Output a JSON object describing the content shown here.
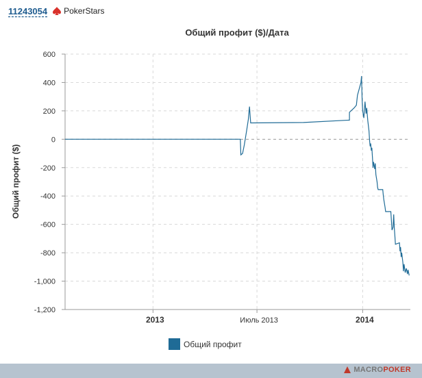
{
  "header": {
    "player_id": "11243054",
    "room_name": "PokerStars",
    "room_icon": "pokerstars-spade-icon"
  },
  "colors": {
    "series": "#1f6b96",
    "grid": "#d8d8d8",
    "zero_line": "#999999",
    "room_icon": "#d9312b",
    "footer": "#b6c3cf"
  },
  "chart_data": {
    "type": "line",
    "title": "Общий профит ($)/Дата",
    "ylabel": "Общий профит ($)",
    "xlabel": "",
    "ylim": [
      -1200,
      600
    ],
    "yticks": [
      {
        "value": 600,
        "label": "600"
      },
      {
        "value": 400,
        "label": "400"
      },
      {
        "value": 200,
        "label": "200"
      },
      {
        "value": 0,
        "label": "0"
      },
      {
        "value": -200,
        "label": "-200"
      },
      {
        "value": -400,
        "label": "-400"
      },
      {
        "value": -600,
        "label": "-600"
      },
      {
        "value": -800,
        "label": "-800"
      },
      {
        "value": -1000,
        "label": "-1,000"
      },
      {
        "value": -1200,
        "label": "-1,200"
      }
    ],
    "xlim": [
      "2012-08-01",
      "2014-03-25"
    ],
    "xticks": [
      {
        "date": "2013-01-01",
        "label": "2013",
        "bold": true
      },
      {
        "date": "2013-07-01",
        "label": "Июль 2013",
        "bold": false
      },
      {
        "date": "2014-01-01",
        "label": "2014",
        "bold": true
      }
    ],
    "grid": true,
    "legend_position": "bottom",
    "series": [
      {
        "name": "Общий профит",
        "points": [
          [
            "2012-08-01",
            0
          ],
          [
            "2013-06-02",
            0
          ],
          [
            "2013-06-03",
            -110
          ],
          [
            "2013-06-06",
            -100
          ],
          [
            "2013-06-09",
            -40
          ],
          [
            "2013-06-13",
            60
          ],
          [
            "2013-06-16",
            140
          ],
          [
            "2013-06-18",
            230
          ],
          [
            "2013-06-20",
            115
          ],
          [
            "2013-09-20",
            118
          ],
          [
            "2013-12-09",
            135
          ],
          [
            "2013-12-09",
            190
          ],
          [
            "2013-12-17",
            220
          ],
          [
            "2013-12-21",
            240
          ],
          [
            "2013-12-23",
            310
          ],
          [
            "2013-12-27",
            370
          ],
          [
            "2013-12-29",
            400
          ],
          [
            "2013-12-30",
            445
          ],
          [
            "2013-12-31",
            280
          ],
          [
            "2014-01-01",
            200
          ],
          [
            "2014-01-03",
            150
          ],
          [
            "2014-01-05",
            265
          ],
          [
            "2014-01-07",
            180
          ],
          [
            "2014-01-08",
            220
          ],
          [
            "2014-01-10",
            130
          ],
          [
            "2014-01-12",
            60
          ],
          [
            "2014-01-13",
            -10
          ],
          [
            "2014-01-14",
            -50
          ],
          [
            "2014-01-15",
            -30
          ],
          [
            "2014-01-16",
            -80
          ],
          [
            "2014-01-17",
            -60
          ],
          [
            "2014-01-18",
            -130
          ],
          [
            "2014-01-19",
            -200
          ],
          [
            "2014-01-20",
            -160
          ],
          [
            "2014-01-22",
            -210
          ],
          [
            "2014-01-23",
            -170
          ],
          [
            "2014-01-24",
            -250
          ],
          [
            "2014-01-26",
            -300
          ],
          [
            "2014-01-27",
            -340
          ],
          [
            "2014-01-28",
            -355
          ],
          [
            "2014-02-05",
            -355
          ],
          [
            "2014-02-06",
            -400
          ],
          [
            "2014-02-07",
            -430
          ],
          [
            "2014-02-09",
            -480
          ],
          [
            "2014-02-10",
            -510
          ],
          [
            "2014-02-19",
            -510
          ],
          [
            "2014-02-20",
            -570
          ],
          [
            "2014-02-21",
            -640
          ],
          [
            "2014-02-23",
            -620
          ],
          [
            "2014-02-24",
            -530
          ],
          [
            "2014-02-25",
            -620
          ],
          [
            "2014-02-26",
            -680
          ],
          [
            "2014-02-27",
            -740
          ],
          [
            "2014-03-06",
            -730
          ],
          [
            "2014-03-07",
            -790
          ],
          [
            "2014-03-08",
            -760
          ],
          [
            "2014-03-09",
            -830
          ],
          [
            "2014-03-10",
            -800
          ],
          [
            "2014-03-12",
            -870
          ],
          [
            "2014-03-13",
            -930
          ],
          [
            "2014-03-14",
            -880
          ],
          [
            "2014-03-16",
            -940
          ],
          [
            "2014-03-18",
            -910
          ],
          [
            "2014-03-20",
            -950
          ],
          [
            "2014-03-21",
            -920
          ],
          [
            "2014-03-23",
            -960
          ]
        ]
      }
    ]
  },
  "footer": {
    "brand_part1": "MACRO",
    "brand_part2": "POKER",
    "brand_icon": "macropoker-logo-icon"
  }
}
